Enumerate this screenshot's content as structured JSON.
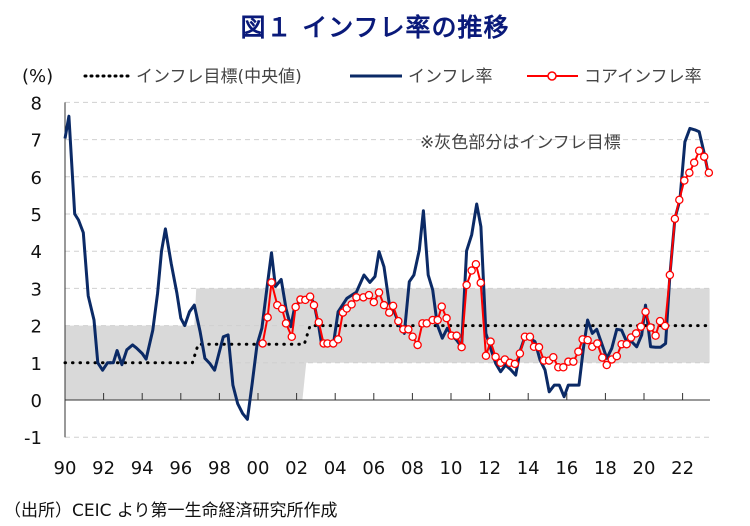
{
  "source_note": "（出所）CEIC より第一生命経済研究所作成",
  "chart_data": {
    "type": "line",
    "title": "図１ インフレ率の推移",
    "ylabel": "(%)",
    "xlabel": "",
    "ylim": [
      -1,
      8
    ],
    "xlim": [
      1990,
      2023.4
    ],
    "grid": true,
    "y_ticks": [
      "8",
      "7",
      "6",
      "5",
      "4",
      "3",
      "2",
      "1",
      "0",
      "-1"
    ],
    "y_tick_values": [
      8,
      7,
      6,
      5,
      4,
      3,
      2,
      1,
      0,
      -1
    ],
    "negative_tick_color": "#ff0000",
    "x_ticks": [
      "90",
      "92",
      "94",
      "96",
      "98",
      "00",
      "02",
      "04",
      "06",
      "08",
      "10",
      "12",
      "14",
      "16",
      "18",
      "20",
      "22"
    ],
    "x_tick_years": [
      1990,
      1992,
      1994,
      1996,
      1998,
      2000,
      2002,
      2004,
      2006,
      2008,
      2010,
      2012,
      2014,
      2016,
      2018,
      2020,
      2022
    ],
    "legend": [
      {
        "label": "インフレ目標(中央値)",
        "style": "dotted",
        "color": "#000000"
      },
      {
        "label": "インフレ率",
        "style": "solid",
        "color": "#0b2a66"
      },
      {
        "label": "コアインフレ率",
        "style": "solid-marker",
        "color": "#ff0000"
      }
    ],
    "annotation": "※灰色部分はインフレ目標",
    "target_band": [
      {
        "from": 1990,
        "to": 1996.7,
        "low": 0,
        "high": 2
      },
      {
        "from": 1996.8,
        "to": 2002.3,
        "low": 0,
        "high": 3
      },
      {
        "from": 2002.5,
        "to": 2023.4,
        "low": 1,
        "high": 3
      }
    ],
    "band_color": "#d9d9d9",
    "series": [
      {
        "name": "インフレ目標(中央値)",
        "points": [
          [
            1990,
            1
          ],
          [
            1996.6,
            1
          ],
          [
            1996.9,
            1.5
          ],
          [
            2002.4,
            1.5
          ],
          [
            2002.7,
            2
          ],
          [
            2023.4,
            2
          ]
        ]
      },
      {
        "name": "インフレ率",
        "points": [
          [
            1990.0,
            7.03
          ],
          [
            1990.2,
            7.63
          ],
          [
            1990.5,
            5.0
          ],
          [
            1990.7,
            4.84
          ],
          [
            1990.95,
            4.5
          ],
          [
            1991.2,
            2.8
          ],
          [
            1991.5,
            2.15
          ],
          [
            1991.7,
            1.0
          ],
          [
            1991.95,
            0.8
          ],
          [
            1992.2,
            1.0
          ],
          [
            1992.5,
            1.0
          ],
          [
            1992.7,
            1.33
          ],
          [
            1992.95,
            0.95
          ],
          [
            1993.2,
            1.35
          ],
          [
            1993.5,
            1.48
          ],
          [
            1993.7,
            1.4
          ],
          [
            1994.0,
            1.25
          ],
          [
            1994.2,
            1.1
          ],
          [
            1994.55,
            1.88
          ],
          [
            1994.8,
            2.87
          ],
          [
            1995.0,
            4.0
          ],
          [
            1995.2,
            4.6
          ],
          [
            1995.5,
            3.67
          ],
          [
            1995.8,
            2.87
          ],
          [
            1996.0,
            2.2
          ],
          [
            1996.2,
            2.0
          ],
          [
            1996.45,
            2.37
          ],
          [
            1996.7,
            2.55
          ],
          [
            1997.0,
            1.84
          ],
          [
            1997.25,
            1.12
          ],
          [
            1997.5,
            0.98
          ],
          [
            1997.75,
            0.8
          ],
          [
            1998.0,
            1.3
          ],
          [
            1998.2,
            1.7
          ],
          [
            1998.45,
            1.75
          ],
          [
            1998.7,
            0.4
          ],
          [
            1998.95,
            -0.1
          ],
          [
            1999.2,
            -0.36
          ],
          [
            1999.45,
            -0.52
          ],
          [
            1999.7,
            0.45
          ],
          [
            1999.95,
            1.48
          ],
          [
            2000.2,
            1.93
          ],
          [
            2000.45,
            2.96
          ],
          [
            2000.7,
            3.96
          ],
          [
            2000.9,
            3.05
          ],
          [
            2001.2,
            3.24
          ],
          [
            2001.45,
            2.46
          ],
          [
            2001.7,
            1.97
          ],
          [
            2001.9,
            2.5
          ],
          [
            2002.15,
            2.64
          ],
          [
            2002.4,
            2.73
          ],
          [
            2002.7,
            2.78
          ],
          [
            2002.9,
            2.6
          ],
          [
            2003.15,
            1.97
          ],
          [
            2003.3,
            1.48
          ],
          [
            2003.6,
            1.48
          ],
          [
            2003.9,
            1.48
          ],
          [
            2004.15,
            2.37
          ],
          [
            2004.6,
            2.73
          ],
          [
            2005.1,
            2.9
          ],
          [
            2005.49,
            3.36
          ],
          [
            2005.8,
            3.16
          ],
          [
            2006.06,
            3.32
          ],
          [
            2006.27,
            3.99
          ],
          [
            2006.53,
            3.58
          ],
          [
            2006.8,
            2.6
          ],
          [
            2007.0,
            2.46
          ],
          [
            2007.32,
            2.02
          ],
          [
            2007.58,
            1.79
          ],
          [
            2007.84,
            3.18
          ],
          [
            2008.08,
            3.36
          ],
          [
            2008.36,
            4.03
          ],
          [
            2008.57,
            5.09
          ],
          [
            2008.82,
            3.36
          ],
          [
            2009.05,
            2.96
          ],
          [
            2009.29,
            2.02
          ],
          [
            2009.55,
            1.66
          ],
          [
            2009.81,
            1.93
          ],
          [
            2010.03,
            1.75
          ],
          [
            2010.29,
            1.61
          ],
          [
            2010.55,
            1.43
          ],
          [
            2010.81,
            4.01
          ],
          [
            2011.07,
            4.44
          ],
          [
            2011.33,
            5.27
          ],
          [
            2011.55,
            4.66
          ],
          [
            2011.81,
            1.79
          ],
          [
            2012.05,
            1.39
          ],
          [
            2012.31,
            0.99
          ],
          [
            2012.57,
            0.76
          ],
          [
            2012.83,
            0.94
          ],
          [
            2013.09,
            0.82
          ],
          [
            2013.35,
            0.67
          ],
          [
            2013.57,
            1.3
          ],
          [
            2013.83,
            1.7
          ],
          [
            2014.09,
            1.66
          ],
          [
            2014.35,
            1.57
          ],
          [
            2014.61,
            1.08
          ],
          [
            2014.87,
            0.81
          ],
          [
            2015.09,
            0.22
          ],
          [
            2015.35,
            0.4
          ],
          [
            2015.61,
            0.4
          ],
          [
            2015.86,
            0.09
          ],
          [
            2016.08,
            0.4
          ],
          [
            2016.37,
            0.4
          ],
          [
            2016.63,
            0.4
          ],
          [
            2016.86,
            1.39
          ],
          [
            2017.08,
            2.15
          ],
          [
            2017.32,
            1.79
          ],
          [
            2017.55,
            1.9
          ],
          [
            2017.81,
            1.52
          ],
          [
            2018.07,
            1.12
          ],
          [
            2018.33,
            1.39
          ],
          [
            2018.59,
            1.9
          ],
          [
            2018.84,
            1.88
          ],
          [
            2019.1,
            1.57
          ],
          [
            2019.36,
            1.57
          ],
          [
            2019.62,
            1.43
          ],
          [
            2019.88,
            1.75
          ],
          [
            2020.08,
            2.55
          ],
          [
            2020.34,
            1.43
          ],
          [
            2020.6,
            1.42
          ],
          [
            2020.86,
            1.42
          ],
          [
            2021.12,
            1.52
          ],
          [
            2021.34,
            3.36
          ],
          [
            2021.6,
            4.88
          ],
          [
            2021.86,
            5.38
          ],
          [
            2022.12,
            6.94
          ],
          [
            2022.38,
            7.3
          ],
          [
            2022.64,
            7.26
          ],
          [
            2022.86,
            7.21
          ],
          [
            2023.1,
            6.68
          ],
          [
            2023.33,
            6.09
          ]
        ]
      },
      {
        "name": "コアインフレ率",
        "points": [
          [
            2000.24,
            1.52
          ],
          [
            2000.5,
            2.22
          ],
          [
            2000.7,
            3.16
          ],
          [
            2001.0,
            2.55
          ],
          [
            2001.25,
            2.45
          ],
          [
            2001.45,
            2.06
          ],
          [
            2001.75,
            1.7
          ],
          [
            2001.95,
            2.5
          ],
          [
            2002.2,
            2.7
          ],
          [
            2002.45,
            2.69
          ],
          [
            2002.7,
            2.78
          ],
          [
            2002.9,
            2.55
          ],
          [
            2003.15,
            2.09
          ],
          [
            2003.4,
            1.52
          ],
          [
            2003.6,
            1.52
          ],
          [
            2003.9,
            1.52
          ],
          [
            2004.15,
            1.63
          ],
          [
            2004.4,
            2.35
          ],
          [
            2004.6,
            2.46
          ],
          [
            2004.85,
            2.57
          ],
          [
            2005.1,
            2.76
          ],
          [
            2005.46,
            2.76
          ],
          [
            2005.75,
            2.82
          ],
          [
            2006.0,
            2.63
          ],
          [
            2006.27,
            2.89
          ],
          [
            2006.53,
            2.55
          ],
          [
            2006.8,
            2.35
          ],
          [
            2007.0,
            2.53
          ],
          [
            2007.27,
            2.12
          ],
          [
            2007.53,
            1.9
          ],
          [
            2007.79,
            1.9
          ],
          [
            2008.01,
            1.7
          ],
          [
            2008.27,
            1.48
          ],
          [
            2008.52,
            2.06
          ],
          [
            2008.74,
            2.06
          ],
          [
            2009.05,
            2.15
          ],
          [
            2009.31,
            2.15
          ],
          [
            2009.52,
            2.51
          ],
          [
            2009.77,
            2.2
          ],
          [
            2010.03,
            1.73
          ],
          [
            2010.29,
            1.73
          ],
          [
            2010.55,
            1.42
          ],
          [
            2010.81,
            3.09
          ],
          [
            2011.07,
            3.48
          ],
          [
            2011.29,
            3.65
          ],
          [
            2011.54,
            3.15
          ],
          [
            2011.81,
            1.19
          ],
          [
            2012.05,
            1.57
          ],
          [
            2012.31,
            1.16
          ],
          [
            2012.57,
            1.0
          ],
          [
            2012.79,
            1.09
          ],
          [
            2013.05,
            1.0
          ],
          [
            2013.31,
            0.97
          ],
          [
            2013.57,
            1.25
          ],
          [
            2013.83,
            1.7
          ],
          [
            2014.09,
            1.7
          ],
          [
            2014.3,
            1.43
          ],
          [
            2014.56,
            1.42
          ],
          [
            2014.82,
            1.06
          ],
          [
            2015.08,
            1.06
          ],
          [
            2015.3,
            1.15
          ],
          [
            2015.56,
            0.88
          ],
          [
            2015.82,
            0.88
          ],
          [
            2016.08,
            1.03
          ],
          [
            2016.34,
            1.03
          ],
          [
            2016.6,
            1.3
          ],
          [
            2016.82,
            1.63
          ],
          [
            2017.08,
            1.61
          ],
          [
            2017.32,
            1.43
          ],
          [
            2017.58,
            1.52
          ],
          [
            2017.84,
            1.14
          ],
          [
            2018.07,
            0.94
          ],
          [
            2018.33,
            1.09
          ],
          [
            2018.59,
            1.18
          ],
          [
            2018.84,
            1.5
          ],
          [
            2019.1,
            1.5
          ],
          [
            2019.33,
            1.68
          ],
          [
            2019.59,
            1.79
          ],
          [
            2019.84,
            1.97
          ],
          [
            2020.08,
            2.37
          ],
          [
            2020.34,
            1.95
          ],
          [
            2020.6,
            1.73
          ],
          [
            2020.83,
            2.12
          ],
          [
            2021.09,
            1.99
          ],
          [
            2021.34,
            3.36
          ],
          [
            2021.6,
            4.87
          ],
          [
            2021.83,
            5.38
          ],
          [
            2022.09,
            5.9
          ],
          [
            2022.35,
            6.11
          ],
          [
            2022.6,
            6.38
          ],
          [
            2022.86,
            6.7
          ],
          [
            2023.12,
            6.54
          ],
          [
            2023.36,
            6.11
          ]
        ]
      }
    ]
  }
}
